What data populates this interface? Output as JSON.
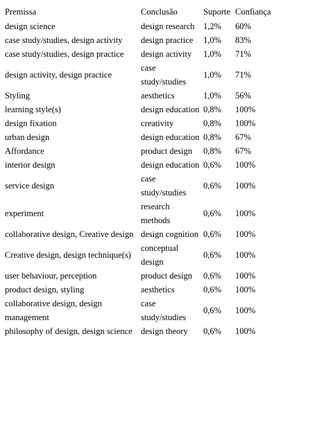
{
  "table": {
    "headers": [
      "Premissa",
      "Conclusão",
      "Suporte",
      "Confiança"
    ],
    "rows": [
      {
        "premissa": "design science",
        "conclusao": "design research",
        "suporte": "1,2%",
        "confianca": "60%"
      },
      {
        "premissa": "case study/studies, design activity",
        "conclusao": "design practice",
        "suporte": "1,0%",
        "confianca": "83%"
      },
      {
        "premissa": "case study/studies, design practice",
        "conclusao": "design activity",
        "suporte": "1,0%",
        "confianca": "71%"
      },
      {
        "premissa": "design activity, design practice",
        "conclusao": "case study/studies",
        "suporte": "1,0%",
        "confianca": "71%"
      },
      {
        "premissa": "Styling",
        "conclusao": "aesthetics",
        "suporte": "1,0%",
        "confianca": "56%"
      },
      {
        "premissa": "learning style(s)",
        "conclusao": "design education",
        "suporte": "0,8%",
        "confianca": "100%"
      },
      {
        "premissa": "design fixation",
        "conclusao": "creativity",
        "suporte": "0,8%",
        "confianca": "100%"
      },
      {
        "premissa": "urban design",
        "conclusao": "design education",
        "suporte": "0,8%",
        "confianca": "67%"
      },
      {
        "premissa": "Affordance",
        "conclusao": "product design",
        "suporte": "0,8%",
        "confianca": "67%"
      },
      {
        "premissa": "interior design",
        "conclusao": "design education",
        "suporte": "0,6%",
        "confianca": "100%"
      },
      {
        "premissa": "service design",
        "conclusao": "case study/studies",
        "suporte": "0,6%",
        "confianca": "100%"
      },
      {
        "premissa": "experiment",
        "conclusao": "research methods",
        "suporte": "0,6%",
        "confianca": "100%"
      },
      {
        "premissa": "collaborative design, Creative design",
        "conclusao": "design cognition",
        "suporte": "0,6%",
        "confianca": "100%"
      },
      {
        "premissa": "Creative design, design technique(s)",
        "conclusao": "conceptual design",
        "suporte": "0,6%",
        "confianca": "100%"
      },
      {
        "premissa": "user behaviour, perception",
        "conclusao": "product design",
        "suporte": "0,6%",
        "confianca": "100%"
      },
      {
        "premissa": "product design, styling",
        "conclusao": "aesthetics",
        "suporte": "0,6%",
        "confianca": "100%"
      },
      {
        "premissa": "collaborative design, design management",
        "conclusao": "case study/studies",
        "suporte": "0,6%",
        "confianca": "100%"
      },
      {
        "premissa": "philosophy of design, design science",
        "conclusao": "design theory",
        "suporte": "0,6%",
        "confianca": "100%"
      }
    ]
  }
}
